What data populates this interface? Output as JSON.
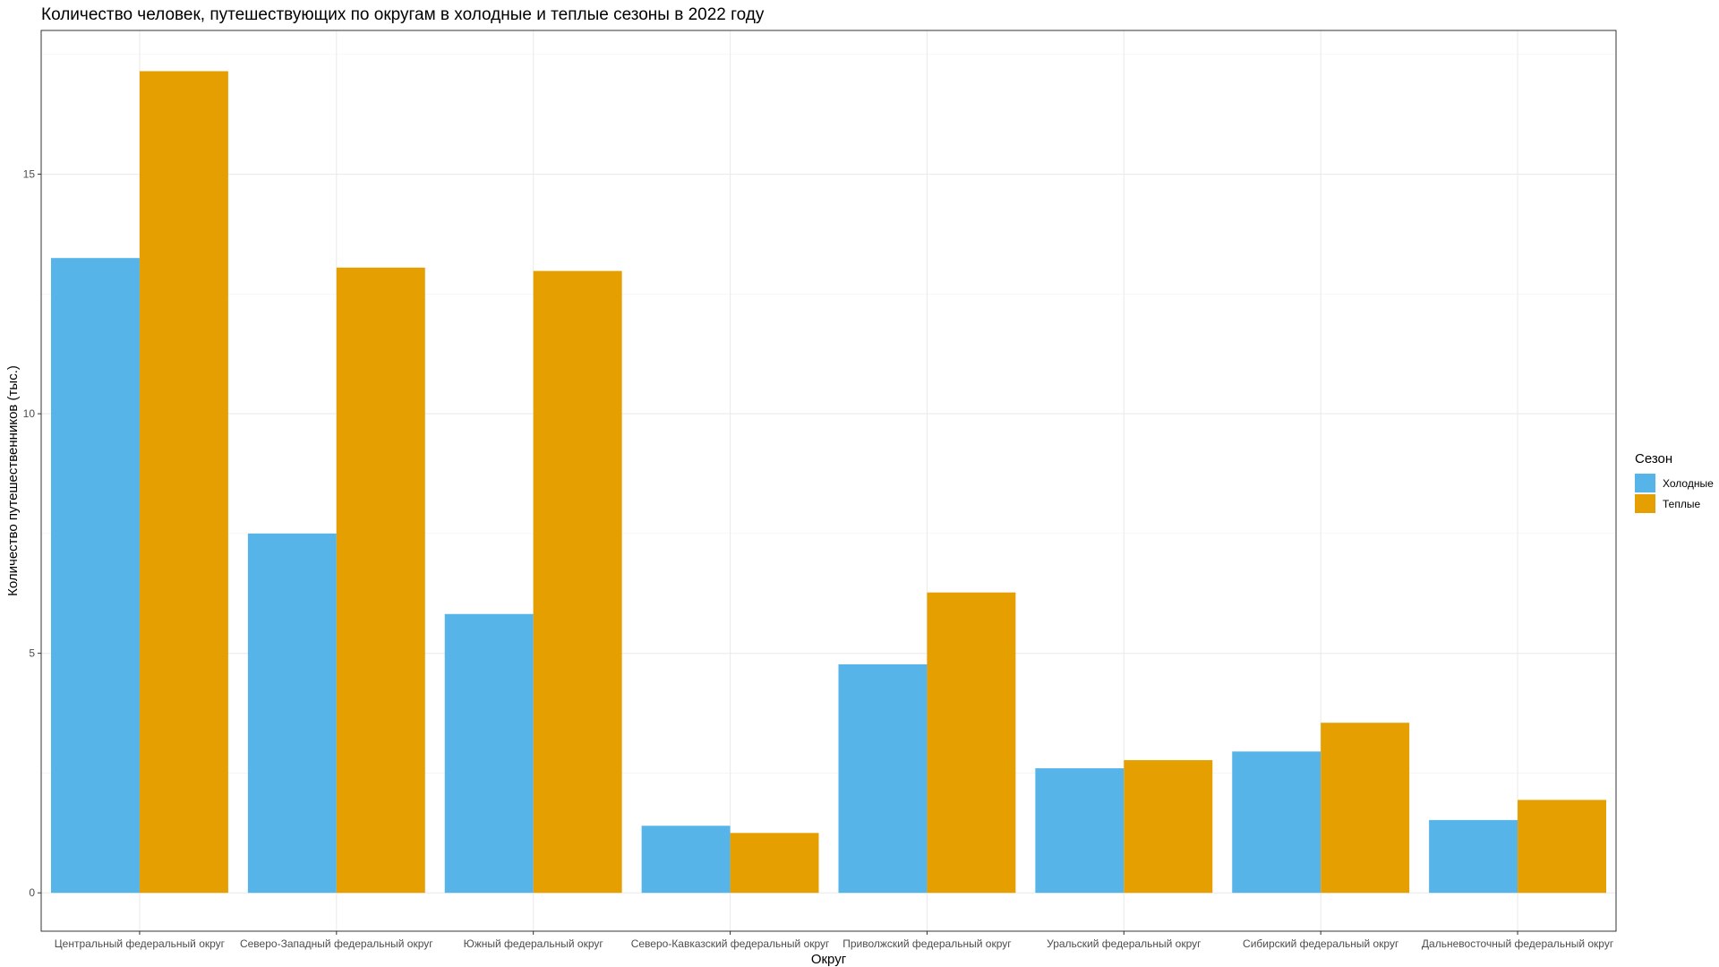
{
  "chart_data": {
    "type": "bar",
    "title": "Количество человек, путешествующих по округам в холодные и теплые сезоны в 2022 году",
    "xlabel": "Округ",
    "ylabel": "Количество путешественников (тыс.)",
    "categories": [
      "Центральный федеральный округ",
      "Северо-Западный федеральный округ",
      "Южный федеральный округ",
      "Северо-Кавказский федеральный округ",
      "Приволжский федеральный округ",
      "Уральский федеральный округ",
      "Сибирский федеральный округ",
      "Дальневосточный федеральный округ"
    ],
    "series": [
      {
        "name": "Холодные",
        "color": "#56B4E9",
        "values": [
          13.25,
          7.5,
          5.82,
          1.4,
          4.77,
          2.6,
          2.95,
          1.52
        ]
      },
      {
        "name": "Теплые",
        "color": "#E69F00",
        "values": [
          17.15,
          13.05,
          12.98,
          1.25,
          6.27,
          2.77,
          3.55,
          1.94
        ]
      }
    ],
    "yticks": [
      0,
      5,
      10,
      15
    ],
    "ylim": [
      -0.8,
      18.0
    ],
    "grid": true,
    "legend": {
      "title": "Сезон",
      "position": "right"
    }
  }
}
